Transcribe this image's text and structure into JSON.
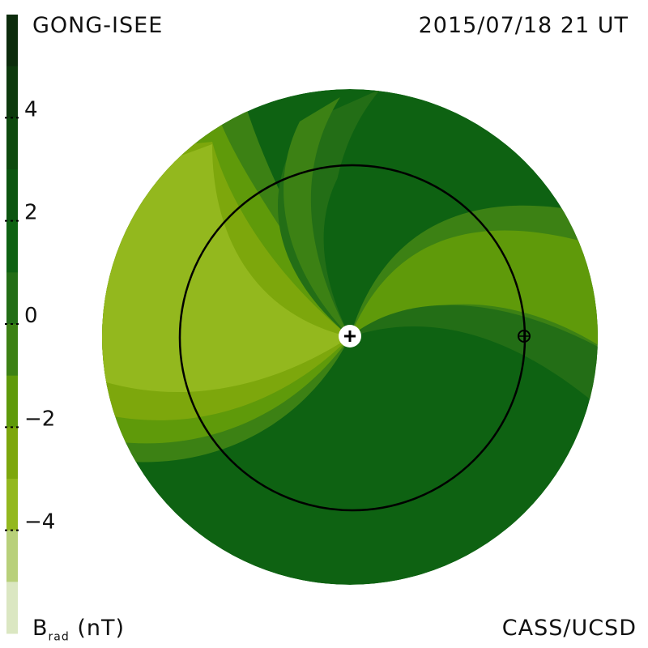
{
  "header": {
    "source": "GONG-ISEE",
    "datetime": "2015/07/18 21 UT"
  },
  "footer": {
    "institution": "CASS/UCSD"
  },
  "chart_data": {
    "type": "heatmap",
    "description_quantity": "B",
    "quantity_symbol": "B",
    "quantity_subscript": "rad",
    "quantity_unit": "(nT)",
    "colorbar": {
      "ticks": [
        4,
        2,
        0,
        -2,
        -4
      ],
      "tick_labels": [
        "4",
        "2",
        "0",
        "−2",
        "−4"
      ],
      "range": [
        -6,
        6
      ],
      "levels": [
        {
          "min": 5,
          "max": 6,
          "color": "#0c2c0c"
        },
        {
          "min": 4,
          "max": 5,
          "color": "#0d3a0d"
        },
        {
          "min": 3,
          "max": 4,
          "color": "#0e4a0e"
        },
        {
          "min": 2,
          "max": 3,
          "color": "#0c5510"
        },
        {
          "min": 1,
          "max": 2,
          "color": "#0e6212"
        },
        {
          "min": 0,
          "max": 1,
          "color": "#236e16"
        },
        {
          "min": -1,
          "max": 0,
          "color": "#3c8114"
        },
        {
          "min": -2,
          "max": -1,
          "color": "#5f9a0a"
        },
        {
          "min": -3,
          "max": -2,
          "color": "#7da70c"
        },
        {
          "min": -4,
          "max": -3,
          "color": "#93b81e"
        },
        {
          "min": -5,
          "max": -4,
          "color": "#b8d07a"
        },
        {
          "min": -6,
          "max": -5,
          "color": "#dbe7c2"
        }
      ]
    },
    "markers": {
      "sun": "plus-marker",
      "earth": "circled-plus-marker"
    }
  }
}
